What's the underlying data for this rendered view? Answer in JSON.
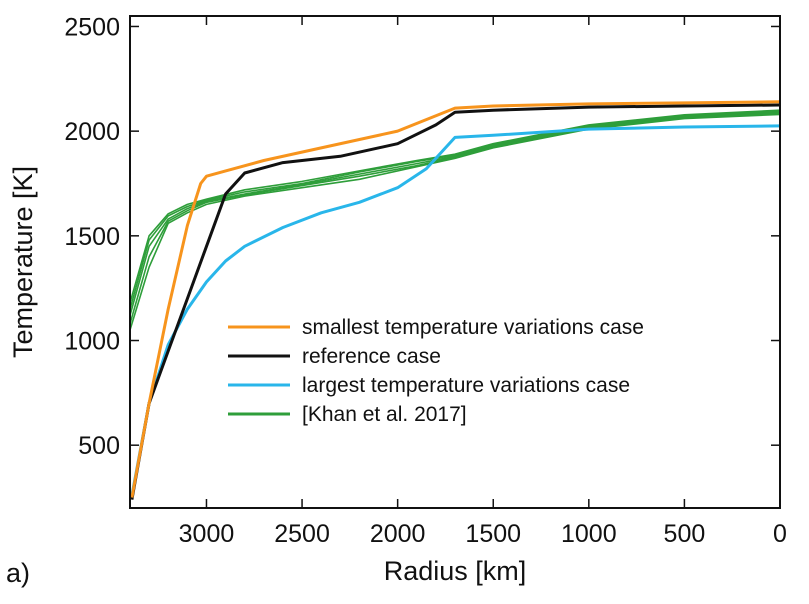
{
  "panel_label": "a)",
  "chart_data": {
    "type": "line",
    "title": "",
    "xlabel": "Radius [km]",
    "ylabel": "Temperature [K]",
    "xlim": [
      3400,
      0
    ],
    "ylim": [
      200,
      2550
    ],
    "x_reversed": true,
    "grid": false,
    "legend_position": "center",
    "xticks": [
      3000,
      2500,
      2000,
      1500,
      1000,
      500,
      0
    ],
    "yticks": [
      500,
      1000,
      1500,
      2000,
      2500
    ],
    "series": [
      {
        "name": "smallest temperature variations case",
        "color": "#F7941D",
        "points": [
          [
            3390,
            250
          ],
          [
            3300,
            700
          ],
          [
            3200,
            1150
          ],
          [
            3100,
            1550
          ],
          [
            3030,
            1750
          ],
          [
            3000,
            1785
          ],
          [
            2900,
            1810
          ],
          [
            2700,
            1860
          ],
          [
            2400,
            1920
          ],
          [
            2000,
            2000
          ],
          [
            1700,
            2110
          ],
          [
            1500,
            2120
          ],
          [
            1000,
            2130
          ],
          [
            500,
            2135
          ],
          [
            0,
            2140
          ]
        ]
      },
      {
        "name": "reference case",
        "color": "#111111",
        "points": [
          [
            3390,
            240
          ],
          [
            3300,
            700
          ],
          [
            3200,
            950
          ],
          [
            3100,
            1200
          ],
          [
            3000,
            1450
          ],
          [
            2900,
            1700
          ],
          [
            2800,
            1800
          ],
          [
            2600,
            1850
          ],
          [
            2300,
            1880
          ],
          [
            2000,
            1940
          ],
          [
            1800,
            2030
          ],
          [
            1700,
            2090
          ],
          [
            1500,
            2100
          ],
          [
            1000,
            2115
          ],
          [
            500,
            2120
          ],
          [
            0,
            2125
          ]
        ]
      },
      {
        "name": "largest temperature variations case",
        "color": "#29B6EA",
        "points": [
          [
            3390,
            260
          ],
          [
            3300,
            700
          ],
          [
            3200,
            980
          ],
          [
            3100,
            1150
          ],
          [
            3000,
            1280
          ],
          [
            2900,
            1380
          ],
          [
            2800,
            1450
          ],
          [
            2600,
            1540
          ],
          [
            2400,
            1610
          ],
          [
            2200,
            1660
          ],
          [
            2000,
            1730
          ],
          [
            1850,
            1820
          ],
          [
            1700,
            1970
          ],
          [
            1500,
            1980
          ],
          [
            1000,
            2010
          ],
          [
            500,
            2020
          ],
          [
            0,
            2025
          ]
        ]
      },
      {
        "name": "[Khan et al. 2017]",
        "color": "#2E9E3A",
        "members": [
          [
            [
              3400,
              1050
            ],
            [
              3300,
              1350
            ],
            [
              3200,
              1560
            ],
            [
              3100,
              1610
            ],
            [
              3000,
              1650
            ],
            [
              2800,
              1690
            ],
            [
              2500,
              1730
            ],
            [
              2200,
              1770
            ],
            [
              1900,
              1830
            ],
            [
              1700,
              1870
            ],
            [
              1500,
              1920
            ],
            [
              1000,
              2010
            ],
            [
              500,
              2060
            ],
            [
              0,
              2080
            ]
          ],
          [
            [
              3400,
              1080
            ],
            [
              3300,
              1400
            ],
            [
              3200,
              1570
            ],
            [
              3100,
              1620
            ],
            [
              3000,
              1660
            ],
            [
              2800,
              1695
            ],
            [
              2500,
              1740
            ],
            [
              2200,
              1785
            ],
            [
              1900,
              1835
            ],
            [
              1700,
              1875
            ],
            [
              1500,
              1925
            ],
            [
              1000,
              2015
            ],
            [
              500,
              2065
            ],
            [
              0,
              2085
            ]
          ],
          [
            [
              3400,
              1120
            ],
            [
              3300,
              1450
            ],
            [
              3200,
              1580
            ],
            [
              3100,
              1630
            ],
            [
              3000,
              1665
            ],
            [
              2800,
              1700
            ],
            [
              2500,
              1745
            ],
            [
              2200,
              1795
            ],
            [
              1900,
              1845
            ],
            [
              1700,
              1880
            ],
            [
              1500,
              1930
            ],
            [
              1000,
              2020
            ],
            [
              500,
              2070
            ],
            [
              0,
              2090
            ]
          ],
          [
            [
              3400,
              1150
            ],
            [
              3300,
              1480
            ],
            [
              3200,
              1595
            ],
            [
              3100,
              1640
            ],
            [
              3000,
              1670
            ],
            [
              2800,
              1710
            ],
            [
              2500,
              1750
            ],
            [
              2200,
              1805
            ],
            [
              1900,
              1855
            ],
            [
              1700,
              1885
            ],
            [
              1500,
              1935
            ],
            [
              1000,
              2025
            ],
            [
              500,
              2072
            ],
            [
              0,
              2095
            ]
          ],
          [
            [
              3400,
              1180
            ],
            [
              3300,
              1500
            ],
            [
              3200,
              1605
            ],
            [
              3100,
              1650
            ],
            [
              3000,
              1675
            ],
            [
              2800,
              1720
            ],
            [
              2500,
              1760
            ],
            [
              2200,
              1810
            ],
            [
              1900,
              1860
            ],
            [
              1700,
              1890
            ],
            [
              1500,
              1940
            ],
            [
              1000,
              2030
            ],
            [
              500,
              2078
            ],
            [
              0,
              2100
            ]
          ]
        ]
      }
    ]
  }
}
